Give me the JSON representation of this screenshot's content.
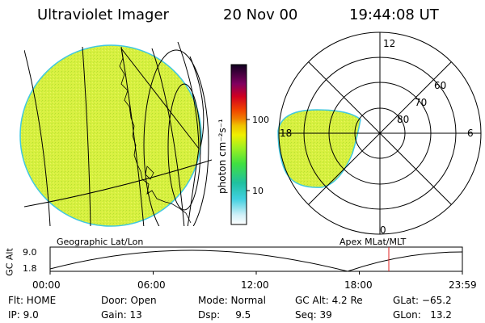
{
  "header": {
    "title": "Ultraviolet Imager",
    "date": "20 Nov 00",
    "time": "19:44:08 UT"
  },
  "colorbar": {
    "unit_label": "photon cm⁻²s⁻¹",
    "ticks": [
      "100",
      "10"
    ]
  },
  "polar_plot": {
    "mlt_labels": {
      "top": "12",
      "left": "18",
      "right": "6",
      "bottom": "0"
    },
    "lat_labels": [
      "60",
      "70",
      "80"
    ]
  },
  "timeline": {
    "geo_label": "Geographic Lat/Lon",
    "apex_label": "Apex MLat/MLT",
    "axis_title": "GC Alt",
    "y_ticks": [
      "9.0",
      "1.8"
    ],
    "x_ticks": [
      "00:00",
      "06:00",
      "12:00",
      "18:00",
      "23:59"
    ]
  },
  "status": {
    "flt": "Flt: HOME",
    "ip": "IP:  9.0",
    "door": "Door: Open",
    "gain": "Gain: 13",
    "mode": "Mode: Normal",
    "dsp": "Dsp:     9.5",
    "gcalt": "GC Alt: 4.2 Re",
    "seq": "Seq: 39",
    "glat": "GLat: −65.2",
    "glon": "GLon:   13.2"
  },
  "colors": {
    "fill": "#d8f040",
    "edge": "#40c8e0",
    "marker": "#e02020"
  }
}
